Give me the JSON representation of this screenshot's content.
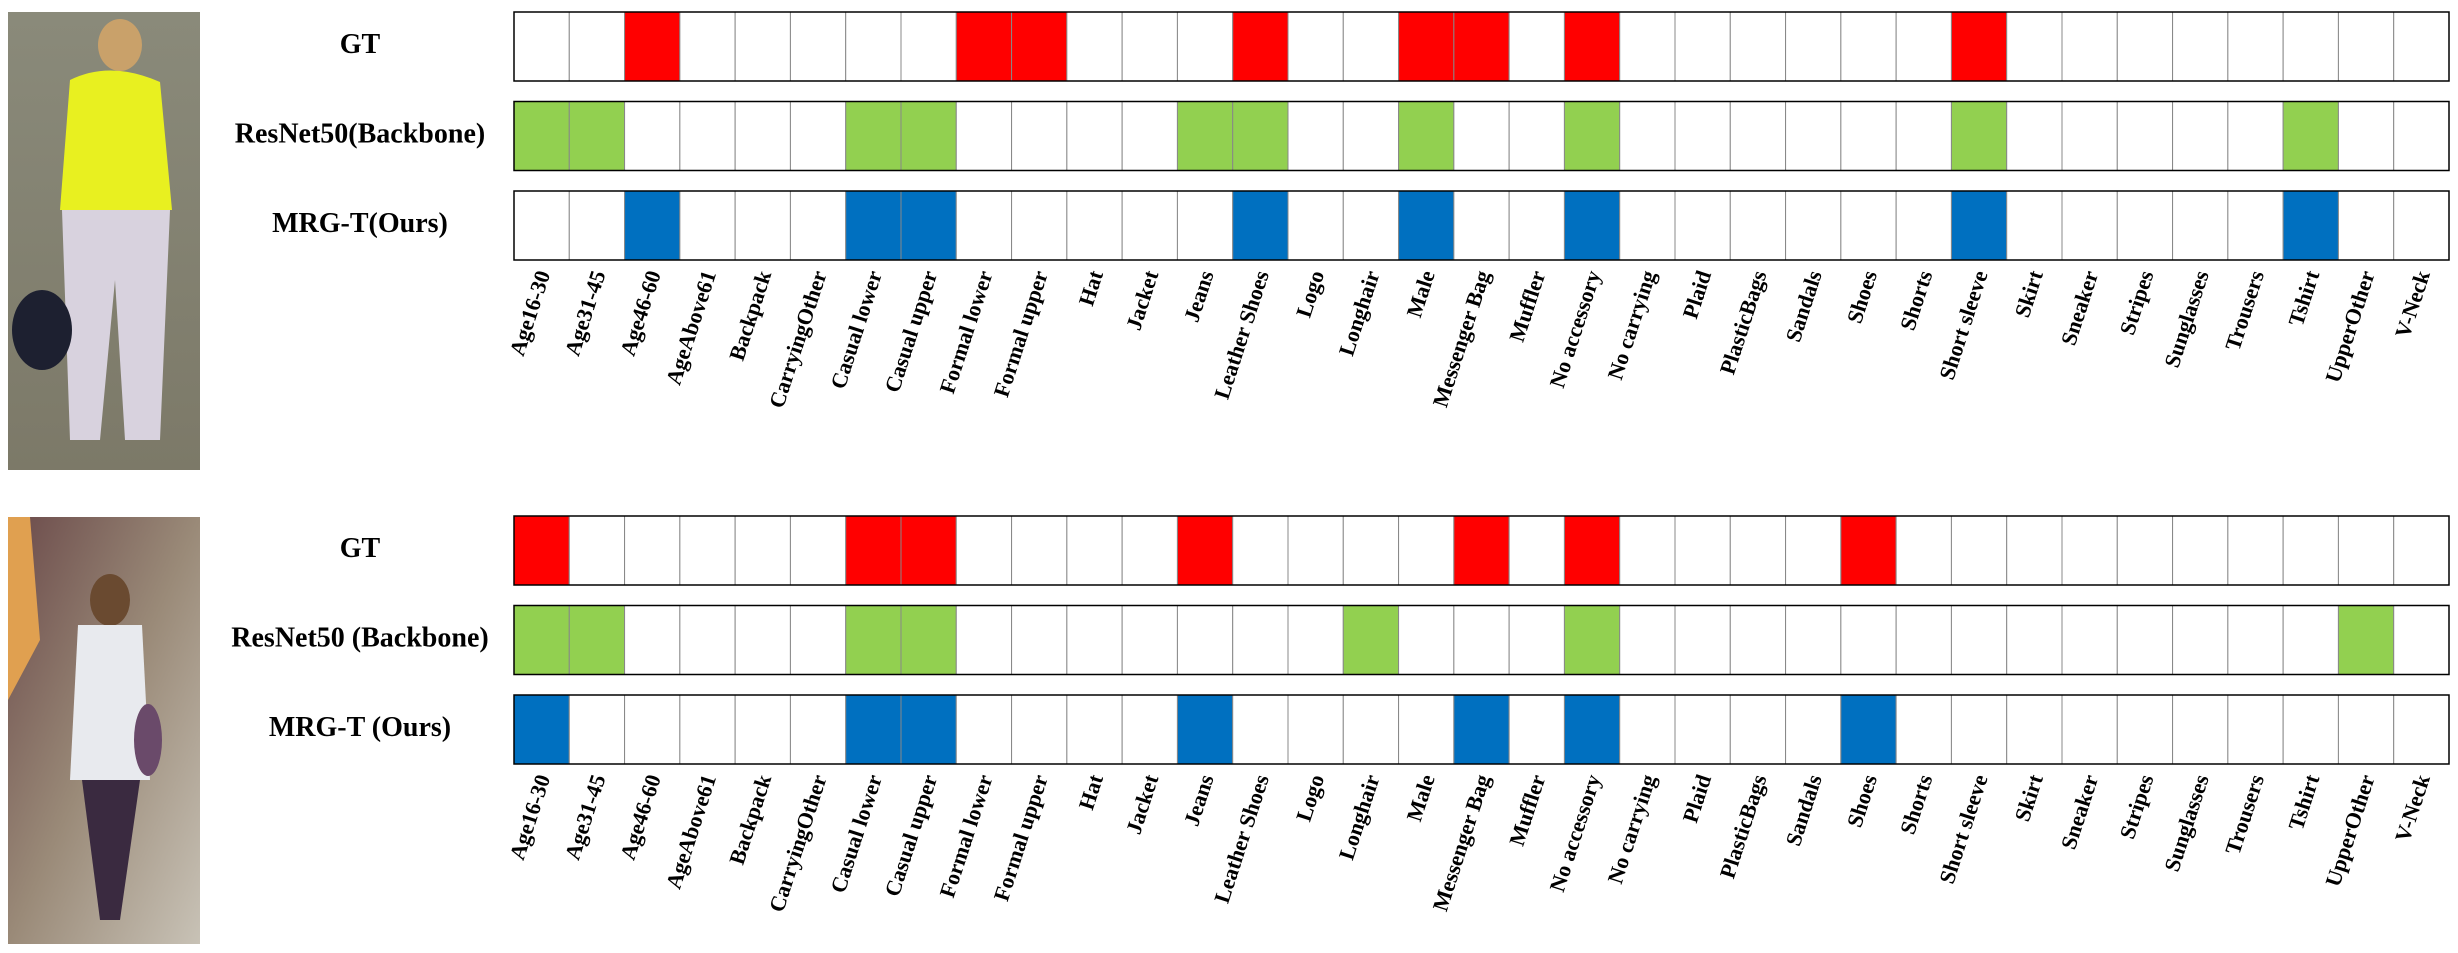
{
  "panels": [
    {
      "attributes": [
        "Age16-30",
        "Age31-45",
        "Age46-60",
        "AgeAbove61",
        "Backpack",
        "CarryingOther",
        "Casual lower",
        "Casual upper",
        "Formal lower",
        "Formal upper",
        "Hat",
        "Jacket",
        "Jeans",
        "Leather Shoes",
        "Logo",
        "Longhair",
        "Male",
        "Messenger Bag",
        "Muffler",
        "No accessory",
        "No carrying",
        "Plaid",
        "PlasticBags",
        "Sandals",
        "Shoes",
        "Shorts",
        "Short sleeve",
        "Skirt",
        "Sneaker",
        "Stripes",
        "Sunglasses",
        "Trousers",
        "Tshirt",
        "UpperOther",
        "V-Neck"
      ],
      "rows": [
        {
          "label": "GT",
          "color": "#ff0000",
          "cells": [
            0,
            0,
            1,
            0,
            0,
            0,
            0,
            0,
            1,
            1,
            0,
            0,
            0,
            1,
            0,
            0,
            1,
            1,
            0,
            1,
            0,
            0,
            0,
            0,
            0,
            0,
            1,
            0,
            0,
            0,
            0,
            0,
            0,
            0,
            0
          ]
        },
        {
          "label": "ResNet50(Backbone)",
          "color": "#92d050",
          "cells": [
            1,
            1,
            0,
            0,
            0,
            0,
            1,
            1,
            0,
            0,
            0,
            0,
            1,
            1,
            0,
            0,
            1,
            0,
            0,
            1,
            0,
            0,
            0,
            0,
            0,
            0,
            1,
            0,
            0,
            0,
            0,
            0,
            1,
            0,
            0
          ]
        },
        {
          "label": "MRG-T(Ours)",
          "color": "#0070c0",
          "cells": [
            0,
            0,
            1,
            0,
            0,
            0,
            1,
            1,
            0,
            0,
            0,
            0,
            0,
            1,
            0,
            0,
            1,
            0,
            0,
            1,
            0,
            0,
            0,
            0,
            0,
            0,
            1,
            0,
            0,
            0,
            0,
            0,
            1,
            0,
            0
          ]
        }
      ]
    },
    {
      "attributes": [
        "Age16-30",
        "Age31-45",
        "Age46-60",
        "AgeAbove61",
        "Backpack",
        "CarryingOther",
        "Casual lower",
        "Casual upper",
        "Formal lower",
        "Formal upper",
        "Hat",
        "Jacket",
        "Jeans",
        "Leather Shoes",
        "Logo",
        "Longhair",
        "Male",
        "Messenger Bag",
        "Muffler",
        "No accessory",
        "No carrying",
        "Plaid",
        "PlasticBags",
        "Sandals",
        "Shoes",
        "Shorts",
        "Short sleeve",
        "Skirt",
        "Sneaker",
        "Stripes",
        "Sunglasses",
        "Trousers",
        "Tshirt",
        "UpperOther",
        "V-Neck"
      ],
      "rows": [
        {
          "label": "GT",
          "color": "#ff0000",
          "cells": [
            1,
            0,
            0,
            0,
            0,
            0,
            1,
            1,
            0,
            0,
            0,
            0,
            1,
            0,
            0,
            0,
            0,
            1,
            0,
            1,
            0,
            0,
            0,
            0,
            1,
            0,
            0,
            0,
            0,
            0,
            0,
            0,
            0,
            0,
            0
          ]
        },
        {
          "label": "ResNet50 (Backbone)",
          "color": "#92d050",
          "cells": [
            1,
            1,
            0,
            0,
            0,
            0,
            1,
            1,
            0,
            0,
            0,
            0,
            0,
            0,
            0,
            1,
            0,
            0,
            0,
            1,
            0,
            0,
            0,
            0,
            0,
            0,
            0,
            0,
            0,
            0,
            0,
            0,
            0,
            1,
            0
          ]
        },
        {
          "label": "MRG-T (Ours)",
          "color": "#0070c0",
          "cells": [
            1,
            0,
            0,
            0,
            0,
            0,
            1,
            1,
            0,
            0,
            0,
            0,
            1,
            0,
            0,
            0,
            0,
            1,
            0,
            1,
            0,
            0,
            0,
            0,
            1,
            0,
            0,
            0,
            0,
            0,
            0,
            0,
            0,
            0,
            0
          ]
        }
      ]
    }
  ]
}
